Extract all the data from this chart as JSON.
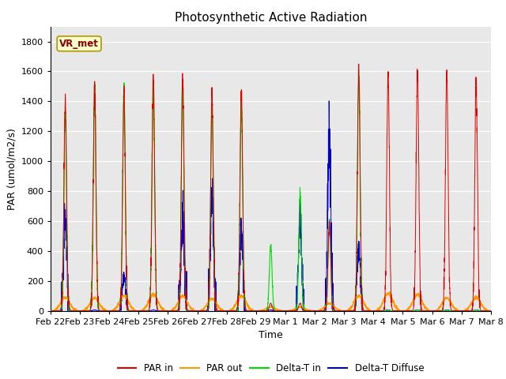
{
  "title": "Photosynthetic Active Radiation",
  "ylabel": "PAR (umol/m2/s)",
  "xlabel": "Time",
  "ylim": [
    0,
    1900
  ],
  "yticks": [
    0,
    200,
    400,
    600,
    800,
    1000,
    1200,
    1400,
    1600,
    1800
  ],
  "bg_color": "#e8e8e8",
  "line_colors": {
    "par_in": "#dd0000",
    "par_out": "#ff9900",
    "delta_t_in": "#00dd00",
    "delta_t_diffuse": "#0000cc"
  },
  "legend_labels": [
    "PAR in",
    "PAR out",
    "Delta-T in",
    "Delta-T Diffuse"
  ],
  "x_tick_labels": [
    "Feb 22",
    "Feb 23",
    "Feb 24",
    "Feb 25",
    "Feb 26",
    "Feb 27",
    "Feb 28",
    "Feb 29",
    "Mar 1",
    "Mar 2",
    "Mar 3",
    "Mar 4",
    "Mar 5",
    "Mar 6",
    "Mar 7",
    "Mar 8"
  ],
  "annotation_text": "VR_met",
  "n_days": 15,
  "pts_per_day": 288
}
